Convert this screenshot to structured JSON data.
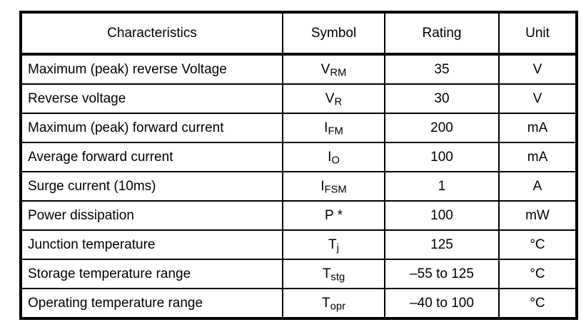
{
  "colors": {
    "background": "#ffffff",
    "border": "#000000",
    "text": "#000000"
  },
  "table": {
    "headers": [
      {
        "label": "Characteristics"
      },
      {
        "label": "Symbol"
      },
      {
        "label": "Rating"
      },
      {
        "label": "Unit"
      }
    ],
    "rows": [
      {
        "characteristic": "Maximum (peak) reverse Voltage",
        "symbol_base": "V",
        "symbol_sub": "RM",
        "rating": "35",
        "unit": "V"
      },
      {
        "characteristic": "Reverse voltage",
        "symbol_base": "V",
        "symbol_sub": "R",
        "rating": "30",
        "unit": "V"
      },
      {
        "characteristic": "Maximum (peak) forward current",
        "symbol_base": "I",
        "symbol_sub": "FM",
        "rating": "200",
        "unit": "mA"
      },
      {
        "characteristic": "Average forward current",
        "symbol_base": "I",
        "symbol_sub": "O",
        "rating": "100",
        "unit": "mA"
      },
      {
        "characteristic": "Surge current (10ms)",
        "symbol_base": "I",
        "symbol_sub": "FSM",
        "rating": "1",
        "unit": "A"
      },
      {
        "characteristic": "Power dissipation",
        "symbol_base": "P *",
        "symbol_sub": "",
        "rating": "100",
        "unit": "mW"
      },
      {
        "characteristic": "Junction temperature",
        "symbol_base": "T",
        "symbol_sub": "j",
        "rating": "125",
        "unit": "°C"
      },
      {
        "characteristic": "Storage temperature range",
        "symbol_base": "T",
        "symbol_sub": "stg",
        "rating": "–55 to 125",
        "unit": "°C"
      },
      {
        "characteristic": "Operating temperature range",
        "symbol_base": "T",
        "symbol_sub": "opr",
        "rating": "–40 to 100",
        "unit": "°C"
      }
    ]
  }
}
